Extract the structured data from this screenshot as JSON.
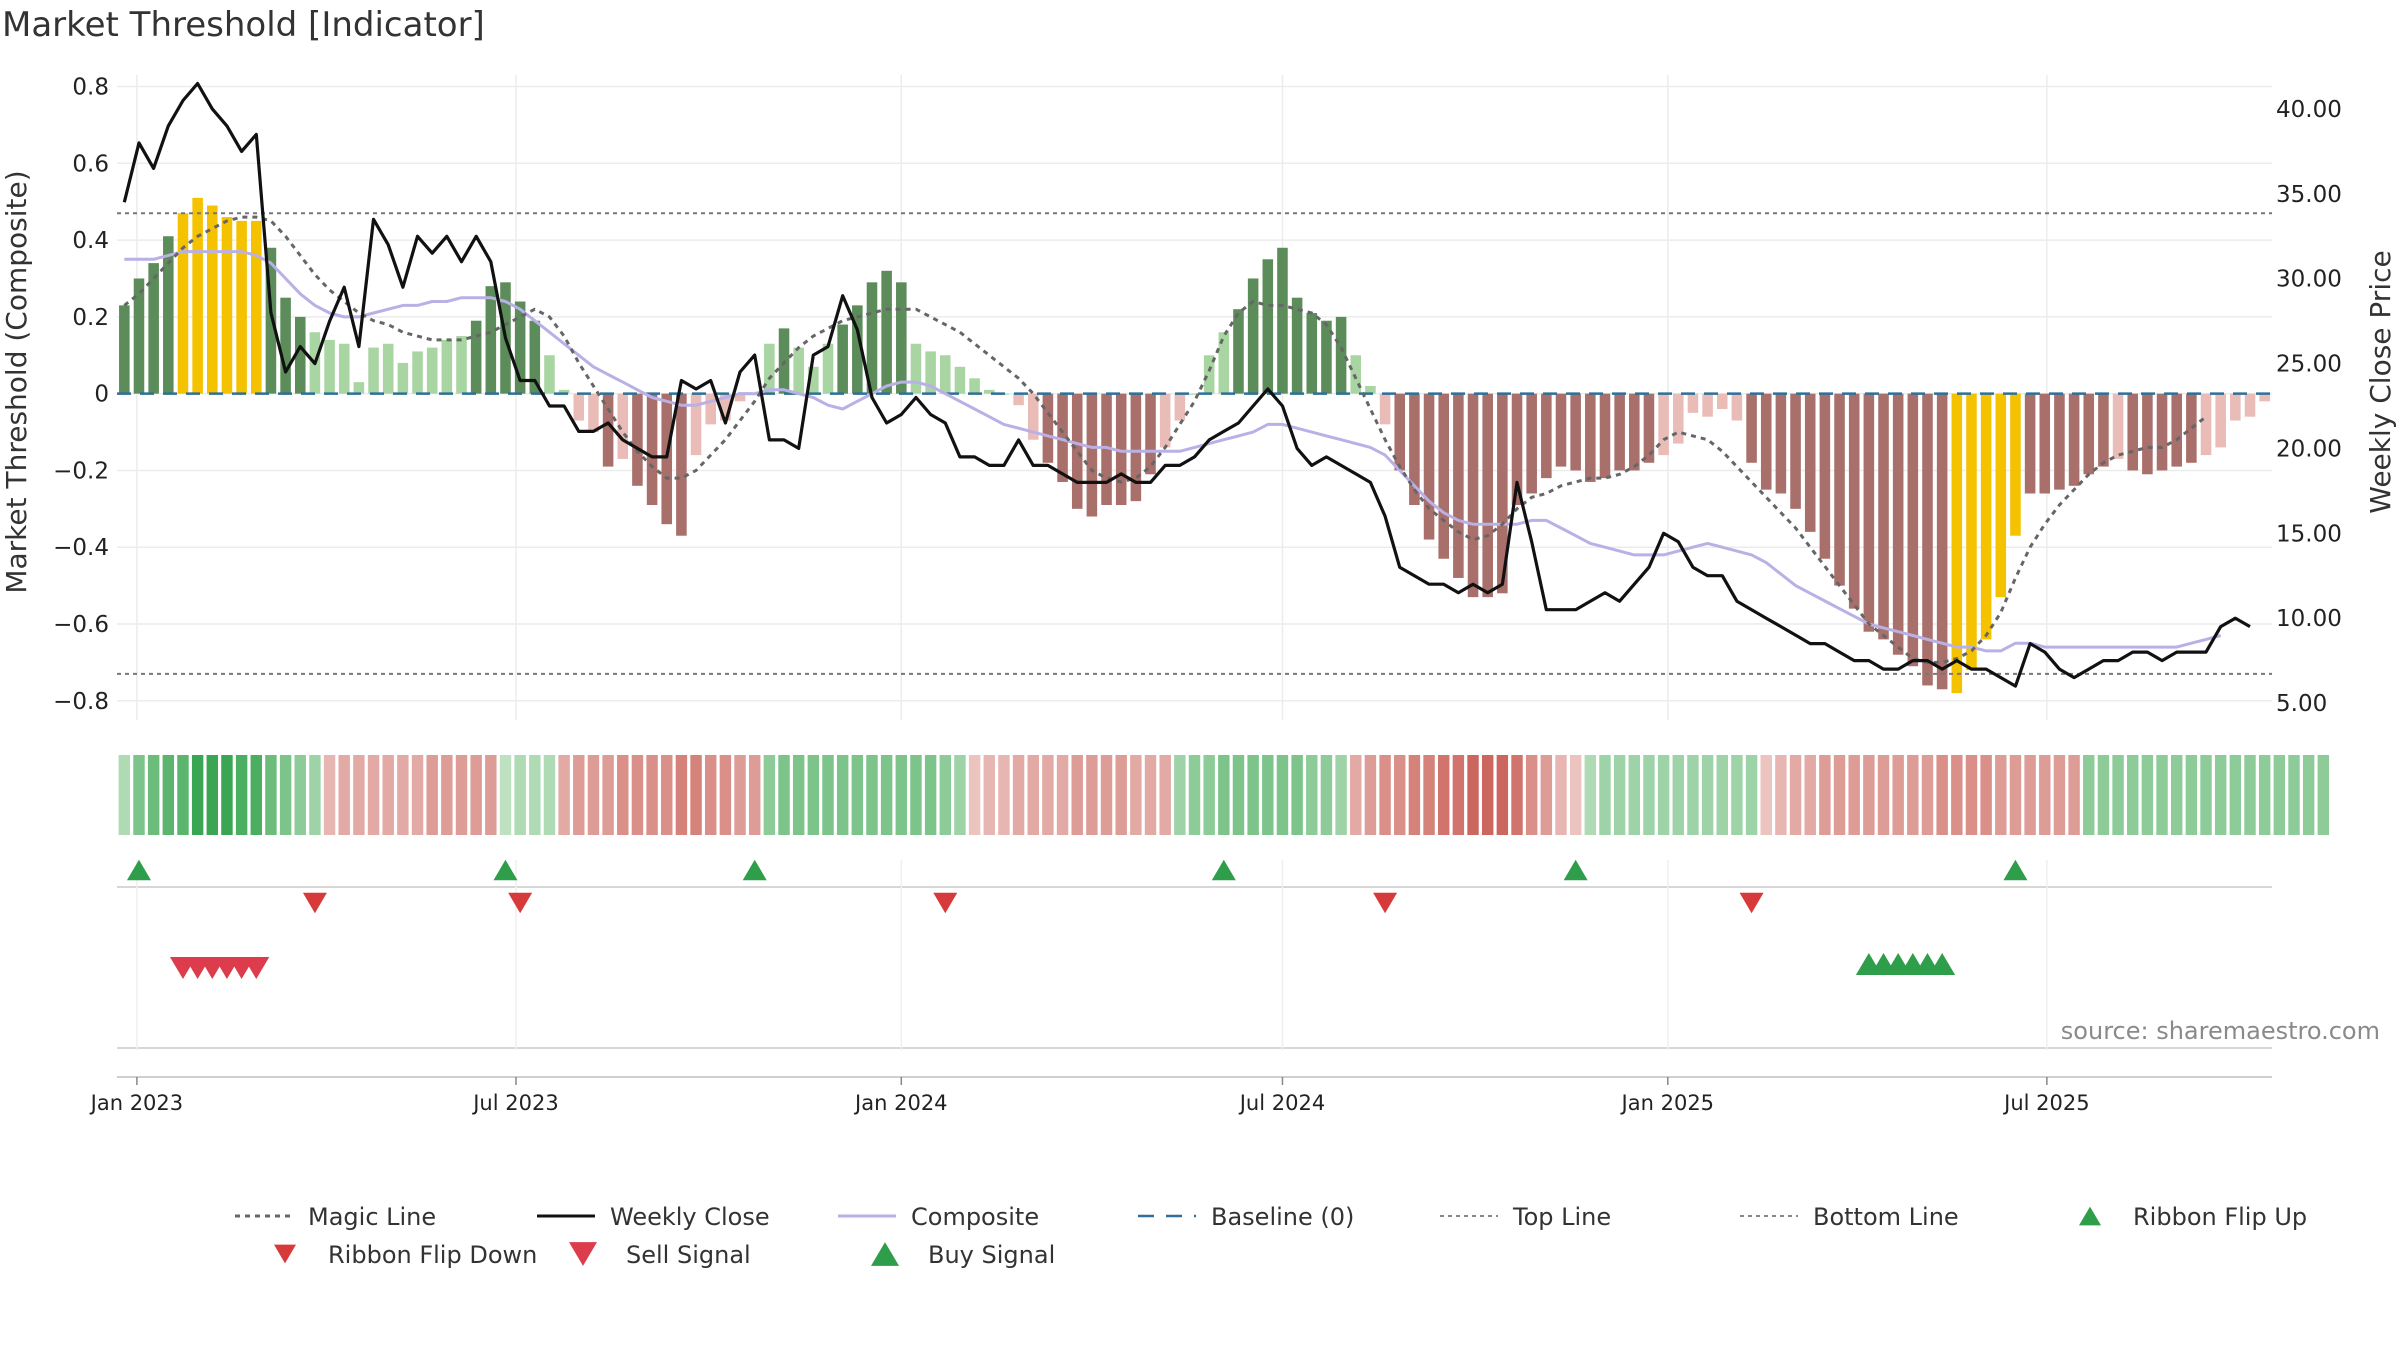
{
  "title": "Market Threshold [Indicator]",
  "source": "source: sharemaestro.com",
  "colors": {
    "bar_pos_strong": "#5b8c5a",
    "bar_pos_weak": "#a8d5a2",
    "bar_neg_strong": "#a86f6b",
    "bar_neg_weak": "#e9bcb7",
    "bar_extreme": "#f5c200",
    "close": "#111111",
    "magic": "#666666",
    "composite": "#b9b0e6",
    "baseline": "#2f6f98",
    "threshold": "#777777",
    "signal_up": "#2e9e4a",
    "signal_down": "#d63a3a",
    "sell": "#dc3c4b",
    "buy": "#2e9e4a"
  },
  "chart_data": {
    "type": "bar",
    "title": "Market Threshold [Indicator]",
    "ylabel": "Market Threshold (Composite)",
    "y2label": "Weekly Close Price",
    "ylim": [
      -0.85,
      0.83
    ],
    "y2lim": [
      4.0,
      42.0
    ],
    "y_ticks": [
      0.8,
      0.6,
      0.4,
      0.2,
      0,
      -0.2,
      -0.4,
      -0.6,
      -0.8
    ],
    "y_tick_labels": [
      "0.8",
      "0.6",
      "0.4",
      "0.2",
      "0",
      "−0.2",
      "−0.4",
      "−0.6",
      "−0.8"
    ],
    "y2_ticks": [
      40,
      35,
      30,
      25,
      20,
      15,
      10,
      5
    ],
    "y2_tick_labels": [
      "40.00",
      "35.00",
      "30.00",
      "25.00",
      "20.00",
      "15.00",
      "10.00",
      "5.00"
    ],
    "x_start": "2022-12-26",
    "x_ticks": [
      "Jan 2023",
      "Jul 2023",
      "Jan 2024",
      "Jul 2024",
      "Jan 2025",
      "Jul 2025"
    ],
    "x_tick_dates": [
      "2023-01-01",
      "2023-07-01",
      "2024-01-01",
      "2024-07-01",
      "2025-01-01",
      "2025-07-01"
    ],
    "top_line": 0.47,
    "bottom_line": -0.73,
    "baseline": 0,
    "bars": [
      0.23,
      0.3,
      0.34,
      0.41,
      0.47,
      0.51,
      0.49,
      0.46,
      0.45,
      0.45,
      0.38,
      0.25,
      0.2,
      0.16,
      0.14,
      0.13,
      0.03,
      0.12,
      0.13,
      0.08,
      0.11,
      0.12,
      0.14,
      0.15,
      0.19,
      0.28,
      0.29,
      0.24,
      0.19,
      0.1,
      0.01,
      -0.07,
      -0.1,
      -0.19,
      -0.17,
      -0.24,
      -0.29,
      -0.34,
      -0.37,
      -0.16,
      -0.08,
      -0.07,
      -0.02,
      0.0,
      0.13,
      0.17,
      0.12,
      0.07,
      0.13,
      0.18,
      0.23,
      0.29,
      0.32,
      0.29,
      0.13,
      0.11,
      0.1,
      0.07,
      0.04,
      0.01,
      0.0,
      -0.03,
      -0.12,
      -0.18,
      -0.23,
      -0.3,
      -0.32,
      -0.29,
      -0.29,
      -0.28,
      -0.21,
      -0.14,
      -0.07,
      0.0,
      0.1,
      0.16,
      0.22,
      0.3,
      0.35,
      0.38,
      0.25,
      0.21,
      0.19,
      0.2,
      0.1,
      0.02,
      -0.08,
      -0.2,
      -0.29,
      -0.38,
      -0.43,
      -0.48,
      -0.53,
      -0.53,
      -0.52,
      -0.29,
      -0.26,
      -0.22,
      -0.19,
      -0.2,
      -0.23,
      -0.22,
      -0.2,
      -0.2,
      -0.18,
      -0.16,
      -0.13,
      -0.05,
      -0.06,
      -0.04,
      -0.07,
      -0.18,
      -0.25,
      -0.26,
      -0.3,
      -0.36,
      -0.43,
      -0.5,
      -0.56,
      -0.62,
      -0.64,
      -0.68,
      -0.71,
      -0.76,
      -0.77,
      -0.78,
      -0.72,
      -0.64,
      -0.53,
      -0.37,
      -0.26,
      -0.26,
      -0.25,
      -0.24,
      -0.21,
      -0.19,
      -0.17,
      -0.2,
      -0.21,
      -0.2,
      -0.19,
      -0.18,
      -0.16,
      -0.14,
      -0.07,
      -0.06,
      -0.02
    ],
    "bar_extremes": [
      4,
      5,
      6,
      7,
      8,
      9,
      125,
      126,
      127,
      128,
      129
    ],
    "series": [
      {
        "name": "Magic Line",
        "style": "dotted",
        "values": [
          0.23,
          0.26,
          0.3,
          0.34,
          0.38,
          0.41,
          0.43,
          0.45,
          0.46,
          0.46,
          0.45,
          0.41,
          0.36,
          0.31,
          0.27,
          0.24,
          0.21,
          0.19,
          0.18,
          0.16,
          0.15,
          0.14,
          0.14,
          0.14,
          0.15,
          0.16,
          0.18,
          0.2,
          0.22,
          0.2,
          0.15,
          0.08,
          0.02,
          -0.04,
          -0.1,
          -0.15,
          -0.19,
          -0.22,
          -0.22,
          -0.2,
          -0.16,
          -0.12,
          -0.07,
          -0.02,
          0.04,
          0.08,
          0.12,
          0.15,
          0.17,
          0.19,
          0.2,
          0.21,
          0.22,
          0.22,
          0.22,
          0.2,
          0.18,
          0.16,
          0.13,
          0.1,
          0.07,
          0.04,
          0.0,
          -0.05,
          -0.1,
          -0.15,
          -0.2,
          -0.22,
          -0.23,
          -0.22,
          -0.19,
          -0.14,
          -0.08,
          -0.02,
          0.06,
          0.15,
          0.21,
          0.24,
          0.23,
          0.23,
          0.22,
          0.21,
          0.18,
          0.12,
          0.04,
          -0.04,
          -0.12,
          -0.19,
          -0.25,
          -0.3,
          -0.33,
          -0.36,
          -0.38,
          -0.37,
          -0.34,
          -0.3,
          -0.27,
          -0.26,
          -0.24,
          -0.23,
          -0.22,
          -0.22,
          -0.21,
          -0.19,
          -0.16,
          -0.12,
          -0.1,
          -0.11,
          -0.12,
          -0.15,
          -0.19,
          -0.23,
          -0.27,
          -0.31,
          -0.35,
          -0.4,
          -0.45,
          -0.5,
          -0.55,
          -0.6,
          -0.63,
          -0.66,
          -0.69,
          -0.7,
          -0.7,
          -0.69,
          -0.67,
          -0.63,
          -0.57,
          -0.48,
          -0.4,
          -0.34,
          -0.29,
          -0.25,
          -0.21,
          -0.18,
          -0.16,
          -0.15,
          -0.14,
          -0.14,
          -0.12,
          -0.09,
          -0.06
        ]
      },
      {
        "name": "Weekly Close",
        "axis": "right",
        "values": [
          34.5,
          38.0,
          36.5,
          39.0,
          40.5,
          41.5,
          40.0,
          39.0,
          37.5,
          38.5,
          28.0,
          24.5,
          26.0,
          25.0,
          27.5,
          29.5,
          26.0,
          33.5,
          32.0,
          29.5,
          32.5,
          31.5,
          32.5,
          31.0,
          32.5,
          31.0,
          26.5,
          24.0,
          24.0,
          22.5,
          22.5,
          21.0,
          21.0,
          21.5,
          20.5,
          20.0,
          19.5,
          19.5,
          24.0,
          23.5,
          24.0,
          21.5,
          24.5,
          25.5,
          20.5,
          20.5,
          20.0,
          25.5,
          26.0,
          29.0,
          27.0,
          23.0,
          21.5,
          22.0,
          23.0,
          22.0,
          21.5,
          19.5,
          19.5,
          19.0,
          19.0,
          20.5,
          19.0,
          19.0,
          18.5,
          18.0,
          18.0,
          18.0,
          18.5,
          18.0,
          18.0,
          19.0,
          19.0,
          19.5,
          20.5,
          21.0,
          21.5,
          22.5,
          23.5,
          22.5,
          20.0,
          19.0,
          19.5,
          19.0,
          18.5,
          18.0,
          16.0,
          13.0,
          12.5,
          12.0,
          12.0,
          11.5,
          12.0,
          11.5,
          12.0,
          18.0,
          14.5,
          10.5,
          10.5,
          10.5,
          11.0,
          11.5,
          11.0,
          12.0,
          13.0,
          15.0,
          14.5,
          13.0,
          12.5,
          12.5,
          11.0,
          10.5,
          10.0,
          9.5,
          9.0,
          8.5,
          8.5,
          8.0,
          7.5,
          7.5,
          7.0,
          7.0,
          7.5,
          7.5,
          7.0,
          7.5,
          7.0,
          7.0,
          6.5,
          6.0,
          8.5,
          8.0,
          7.0,
          6.5,
          7.0,
          7.5,
          7.5,
          8.0,
          8.0,
          7.5,
          8.0,
          8.0,
          8.0,
          9.5,
          10.0,
          9.5
        ]
      },
      {
        "name": "Composite",
        "values": [
          0.35,
          0.35,
          0.35,
          0.36,
          0.37,
          0.37,
          0.37,
          0.37,
          0.37,
          0.36,
          0.34,
          0.3,
          0.26,
          0.23,
          0.21,
          0.2,
          0.2,
          0.21,
          0.22,
          0.23,
          0.23,
          0.24,
          0.24,
          0.25,
          0.25,
          0.25,
          0.24,
          0.22,
          0.19,
          0.16,
          0.13,
          0.1,
          0.07,
          0.05,
          0.03,
          0.01,
          -0.01,
          -0.02,
          -0.03,
          -0.03,
          -0.02,
          -0.01,
          0.0,
          0.0,
          0.01,
          0.01,
          0.0,
          -0.01,
          -0.03,
          -0.04,
          -0.02,
          0.0,
          0.02,
          0.03,
          0.03,
          0.02,
          0.0,
          -0.02,
          -0.04,
          -0.06,
          -0.08,
          -0.09,
          -0.1,
          -0.11,
          -0.12,
          -0.13,
          -0.14,
          -0.14,
          -0.15,
          -0.15,
          -0.15,
          -0.15,
          -0.15,
          -0.14,
          -0.13,
          -0.12,
          -0.11,
          -0.1,
          -0.08,
          -0.08,
          -0.09,
          -0.1,
          -0.11,
          -0.12,
          -0.13,
          -0.14,
          -0.16,
          -0.2,
          -0.24,
          -0.28,
          -0.31,
          -0.33,
          -0.34,
          -0.34,
          -0.34,
          -0.34,
          -0.33,
          -0.33,
          -0.35,
          -0.37,
          -0.39,
          -0.4,
          -0.41,
          -0.42,
          -0.42,
          -0.42,
          -0.41,
          -0.4,
          -0.39,
          -0.4,
          -0.41,
          -0.42,
          -0.44,
          -0.47,
          -0.5,
          -0.52,
          -0.54,
          -0.56,
          -0.58,
          -0.6,
          -0.61,
          -0.62,
          -0.63,
          -0.64,
          -0.65,
          -0.66,
          -0.66,
          -0.67,
          -0.67,
          -0.65,
          -0.65,
          -0.66,
          -0.66,
          -0.66,
          -0.66,
          -0.66,
          -0.66,
          -0.66,
          -0.66,
          -0.66,
          -0.66,
          -0.65,
          -0.64,
          -0.63
        ]
      }
    ],
    "ribbon": [
      0.3,
      0.6,
      0.7,
      0.8,
      0.8,
      1.0,
      1.0,
      1.0,
      0.9,
      0.9,
      0.7,
      0.6,
      0.5,
      0.4,
      -0.3,
      -0.4,
      -0.4,
      -0.4,
      -0.4,
      -0.4,
      -0.4,
      -0.5,
      -0.5,
      -0.5,
      -0.5,
      -0.5,
      0.2,
      0.3,
      0.3,
      0.3,
      -0.4,
      -0.5,
      -0.5,
      -0.5,
      -0.6,
      -0.6,
      -0.6,
      -0.6,
      -0.7,
      -0.7,
      -0.6,
      -0.6,
      -0.5,
      -0.5,
      0.5,
      0.6,
      0.6,
      0.6,
      0.6,
      0.6,
      0.6,
      0.6,
      0.6,
      0.6,
      0.6,
      0.6,
      0.5,
      0.4,
      -0.2,
      -0.3,
      -0.3,
      -0.4,
      -0.4,
      -0.4,
      -0.4,
      -0.5,
      -0.5,
      -0.5,
      -0.5,
      -0.4,
      -0.4,
      -0.4,
      0.4,
      0.5,
      0.5,
      0.6,
      0.6,
      0.6,
      0.6,
      0.6,
      0.6,
      0.5,
      0.5,
      0.4,
      -0.4,
      -0.5,
      -0.6,
      -0.6,
      -0.7,
      -0.7,
      -0.8,
      -0.8,
      -0.9,
      -0.9,
      -0.9,
      -0.8,
      -0.6,
      -0.5,
      -0.3,
      -0.2,
      0.3,
      0.4,
      0.4,
      0.4,
      0.4,
      0.4,
      0.4,
      0.4,
      0.4,
      0.4,
      0.4,
      0.4,
      -0.2,
      -0.3,
      -0.4,
      -0.4,
      -0.5,
      -0.5,
      -0.5,
      -0.5,
      -0.5,
      -0.5,
      -0.5,
      -0.5,
      -0.6,
      -0.6,
      -0.6,
      -0.6,
      -0.5,
      -0.5,
      -0.5,
      -0.5,
      -0.5,
      -0.5,
      0.5,
      0.5,
      0.5,
      0.5,
      0.5,
      0.5,
      0.5,
      0.5,
      0.5,
      0.5,
      0.5,
      0.5,
      0.5,
      0.5,
      0.5,
      0.5,
      0.5
    ],
    "ribbon_flip_up": [
      "2023-01-02",
      "2023-06-26",
      "2023-10-23",
      "2024-06-03",
      "2024-11-18",
      "2025-06-16"
    ],
    "ribbon_flip_down": [
      "2023-03-27",
      "2023-07-03",
      "2024-01-22",
      "2024-08-19",
      "2025-02-10"
    ],
    "sell_signals": [
      "2023-01-23",
      "2023-01-30",
      "2023-02-06",
      "2023-02-13",
      "2023-02-20",
      "2023-02-27"
    ],
    "buy_signals": [
      "2025-04-07",
      "2025-04-14",
      "2025-04-21",
      "2025-04-28",
      "2025-05-05",
      "2025-05-12"
    ],
    "legend": [
      {
        "label": "Magic Line",
        "kind": "dotted",
        "color": "#666666"
      },
      {
        "label": "Weekly Close",
        "kind": "solid",
        "color": "#111111"
      },
      {
        "label": "Composite",
        "kind": "solid",
        "color": "#b9b0e6"
      },
      {
        "label": "Baseline (0)",
        "kind": "dashed",
        "color": "#2f6f98"
      },
      {
        "label": "Top Line",
        "kind": "dotted-thin",
        "color": "#888888"
      },
      {
        "label": "Bottom Line",
        "kind": "dotted-thin",
        "color": "#888888"
      },
      {
        "label": "Ribbon Flip Up",
        "kind": "tri-up-small",
        "color": "#2e9e4a"
      },
      {
        "label": "Ribbon Flip Down",
        "kind": "tri-down-small",
        "color": "#d63a3a"
      },
      {
        "label": "Sell Signal",
        "kind": "tri-down",
        "color": "#dc3c4b"
      },
      {
        "label": "Buy Signal",
        "kind": "tri-up",
        "color": "#2e9e4a"
      }
    ],
    "legend_position": "bottom"
  }
}
